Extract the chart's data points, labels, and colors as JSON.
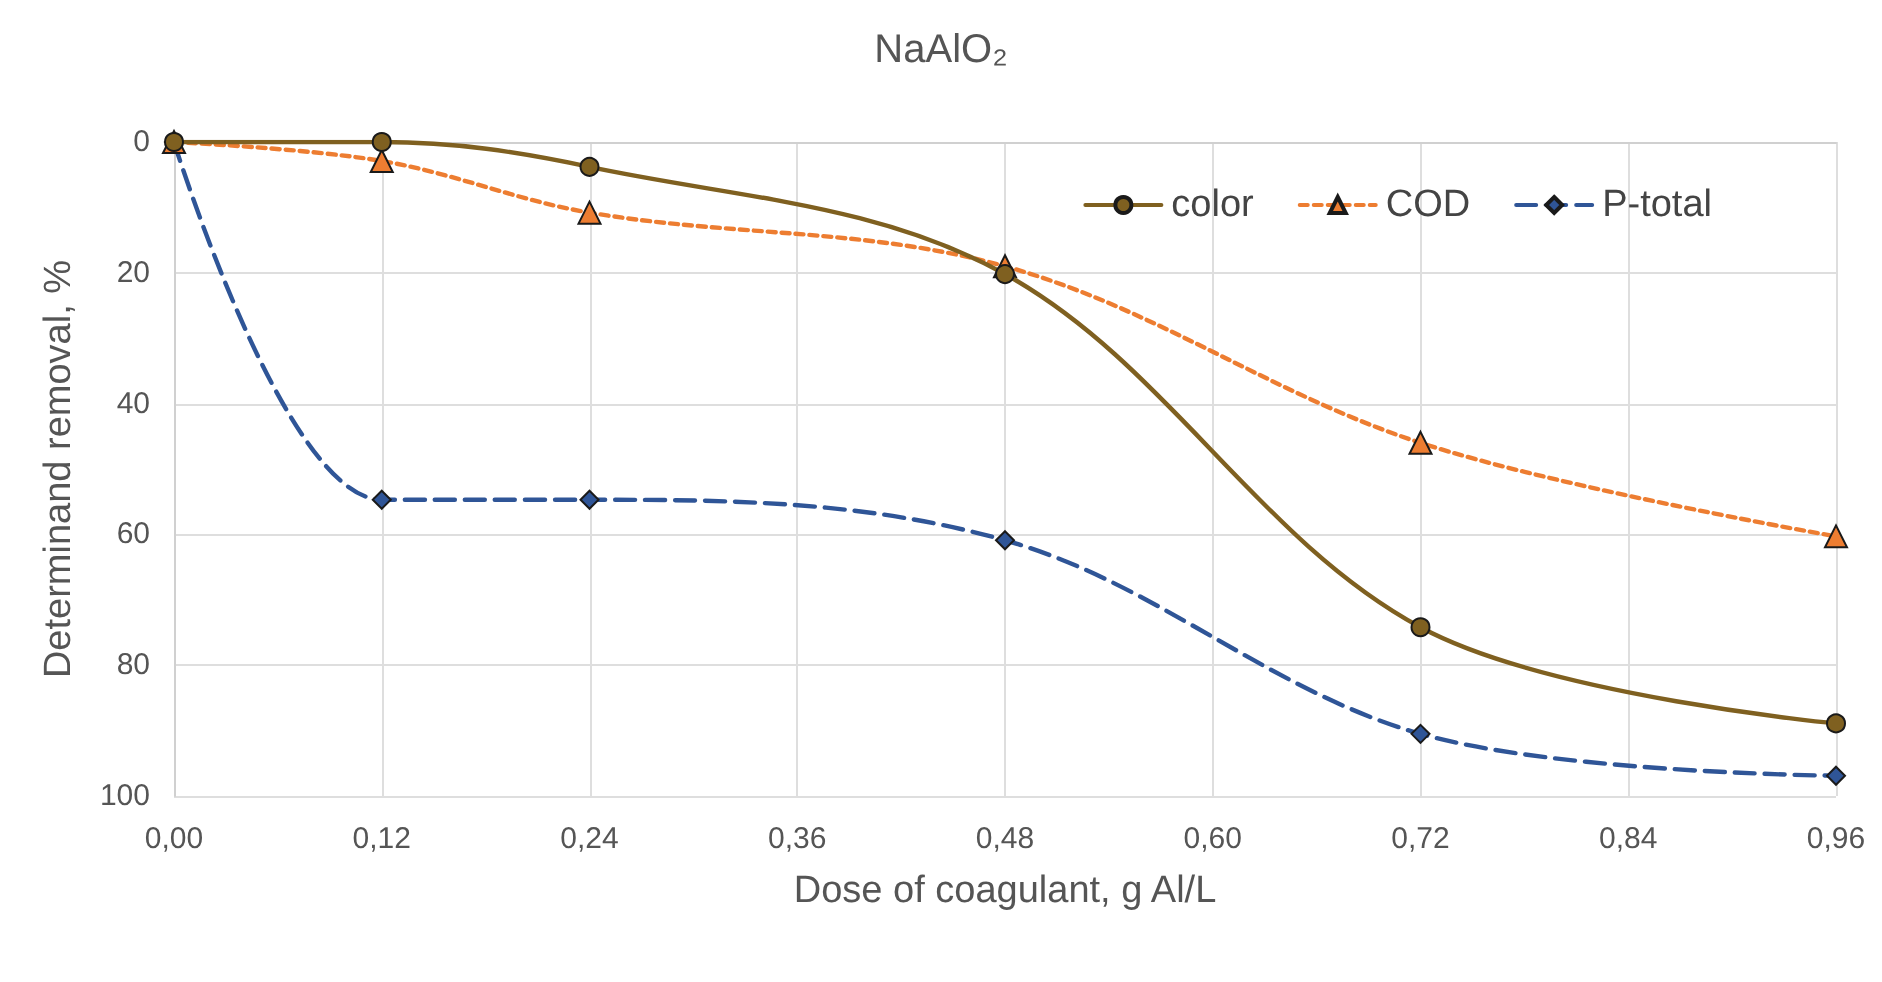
{
  "chart_data": {
    "type": "line",
    "title": "NaAlO₂",
    "xlabel": "Dose of coagulant, g Al/L",
    "ylabel": "Determinand removal, %",
    "x": [
      0,
      0.12,
      0.24,
      0.48,
      0.72,
      0.96
    ],
    "series": [
      {
        "name": "color",
        "color": "#7f6020",
        "marker": "circle",
        "line_style": "solid",
        "values": [
          0,
          0,
          3.8,
          20.2,
          74.2,
          88.9
        ]
      },
      {
        "name": "COD",
        "color": "#ed7d31",
        "marker": "triangle",
        "line_style": "dotted",
        "values": [
          0,
          2.9,
          10.8,
          19,
          46,
          60.3
        ]
      },
      {
        "name": "P-total",
        "color": "#2f5597",
        "marker": "diamond",
        "line_style": "dashed",
        "values": [
          0,
          54.7,
          54.7,
          60.9,
          90.5,
          96.9
        ]
      }
    ],
    "xlim": [
      0,
      0.96
    ],
    "xticks": [
      {
        "value": 0,
        "label": "0,00"
      },
      {
        "value": 0.12,
        "label": "0,12"
      },
      {
        "value": 0.24,
        "label": "0,24"
      },
      {
        "value": 0.36,
        "label": "0,36"
      },
      {
        "value": 0.48,
        "label": "0,48"
      },
      {
        "value": 0.6,
        "label": "0,60"
      },
      {
        "value": 0.72,
        "label": "0,72"
      },
      {
        "value": 0.84,
        "label": "0,84"
      },
      {
        "value": 0.96,
        "label": "0,96"
      }
    ],
    "ylim": [
      100,
      0
    ],
    "yticks": [
      0,
      20,
      40,
      60,
      80,
      100
    ],
    "grid": true,
    "legend": "top right"
  }
}
